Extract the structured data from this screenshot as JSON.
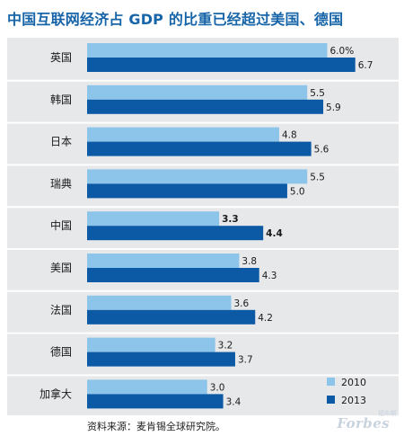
{
  "chart_data": {
    "type": "bar",
    "orientation": "horizontal",
    "title": "中国互联网经济占 GDP 的比重已经超过美国、德国",
    "categories": [
      "英国",
      "韩国",
      "日本",
      "瑞典",
      "中国",
      "美国",
      "法国",
      "德国",
      "加拿大"
    ],
    "series": [
      {
        "name": "2010",
        "color": "#8dc5ea",
        "values": [
          6.0,
          5.5,
          4.8,
          5.5,
          3.3,
          3.8,
          3.6,
          3.2,
          3.0
        ],
        "labels": [
          "6.0%",
          "5.5",
          "4.8",
          "5.5",
          "3.3",
          "3.8",
          "3.6",
          "3.2",
          "3.0"
        ]
      },
      {
        "name": "2013",
        "color": "#0c5aa6",
        "values": [
          6.7,
          5.9,
          5.6,
          5.0,
          4.4,
          4.3,
          4.2,
          3.7,
          3.4
        ],
        "labels": [
          "6.7",
          "5.9",
          "5.6",
          "5.0",
          "4.4",
          "4.3",
          "4.2",
          "3.7",
          "3.4"
        ]
      }
    ],
    "highlight_category": "中国",
    "xlim": [
      0,
      7.2
    ],
    "grid": false,
    "legend_position": "bottom-right"
  },
  "footer": {
    "source": "资料来源：麦肯锡全球研究院。"
  },
  "watermark": {
    "text": "Forbes",
    "sub": "福布斯"
  }
}
